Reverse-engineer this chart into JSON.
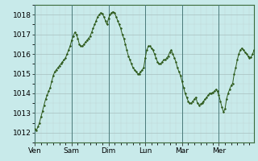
{
  "background_color": "#c8eaea",
  "line_color": "#2d5a1b",
  "marker_color": "#2d5a1b",
  "grid_color_major": "#a8bfbf",
  "grid_color_minor": "#c0d4d4",
  "ylim": [
    1011.5,
    1018.5
  ],
  "yticks": [
    1012,
    1013,
    1014,
    1015,
    1016,
    1017,
    1018
  ],
  "tick_label_fontsize": 6.5,
  "day_labels": [
    "Ven",
    "Sam",
    "Dim",
    "Lun",
    "Mar",
    "Mer"
  ],
  "day_positions": [
    0,
    24,
    48,
    72,
    96,
    120
  ],
  "total_hours": 143,
  "pressure_data": [
    1012.2,
    1012.1,
    1012.3,
    1012.5,
    1012.8,
    1013.1,
    1013.4,
    1013.7,
    1013.9,
    1014.1,
    1014.3,
    1014.6,
    1014.9,
    1015.1,
    1015.2,
    1015.3,
    1015.4,
    1015.5,
    1015.6,
    1015.7,
    1015.8,
    1016.0,
    1016.2,
    1016.4,
    1016.7,
    1016.9,
    1017.1,
    1017.0,
    1016.8,
    1016.5,
    1016.4,
    1016.4,
    1016.5,
    1016.6,
    1016.7,
    1016.8,
    1016.9,
    1017.1,
    1017.3,
    1017.5,
    1017.7,
    1017.9,
    1018.0,
    1018.1,
    1018.05,
    1017.9,
    1017.7,
    1017.5,
    1017.8,
    1018.0,
    1018.1,
    1018.15,
    1018.1,
    1017.9,
    1017.7,
    1017.5,
    1017.3,
    1017.0,
    1016.8,
    1016.5,
    1016.2,
    1015.9,
    1015.7,
    1015.5,
    1015.3,
    1015.2,
    1015.1,
    1015.0,
    1015.0,
    1015.1,
    1015.2,
    1015.3,
    1015.8,
    1016.2,
    1016.4,
    1016.4,
    1016.3,
    1016.2,
    1016.0,
    1015.8,
    1015.6,
    1015.5,
    1015.5,
    1015.6,
    1015.7,
    1015.7,
    1015.8,
    1015.9,
    1016.1,
    1016.2,
    1016.0,
    1015.8,
    1015.6,
    1015.3,
    1015.1,
    1014.9,
    1014.6,
    1014.3,
    1014.0,
    1013.8,
    1013.6,
    1013.5,
    1013.5,
    1013.6,
    1013.7,
    1013.8,
    1013.5,
    1013.4,
    1013.45,
    1013.5,
    1013.6,
    1013.7,
    1013.8,
    1013.9,
    1014.0,
    1014.0,
    1014.05,
    1014.1,
    1014.2,
    1014.1,
    1013.9,
    1013.6,
    1013.3,
    1013.05,
    1013.2,
    1013.7,
    1014.0,
    1014.2,
    1014.4,
    1014.5,
    1015.0,
    1015.3,
    1015.7,
    1016.0,
    1016.2,
    1016.3,
    1016.2,
    1016.1,
    1016.0,
    1015.9,
    1015.8,
    1015.85,
    1016.0,
    1016.2
  ]
}
